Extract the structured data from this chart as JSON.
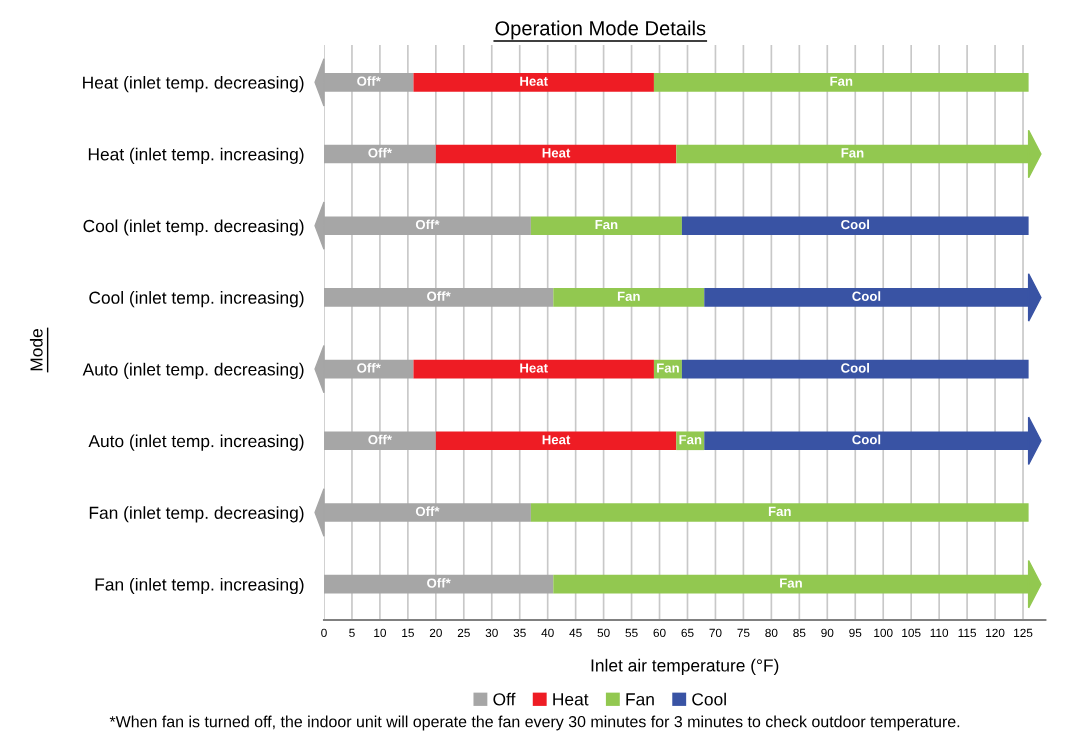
{
  "chart_data": {
    "type": "bar",
    "orientation": "horizontal",
    "stacked": true,
    "title": "Operation Mode Details",
    "xlabel": "Inlet air temperature (°F)",
    "ylabel": "Mode",
    "categories": [
      "Heat (inlet temp. decreasing)",
      "Heat (inlet temp. increasing)",
      "Cool (inlet temp. decreasing)",
      "Cool (inlet temp. increasing)",
      "Auto (inlet temp. decreasing)",
      "Auto (inlet temp. increasing)",
      "Fan (inlet temp. decreasing)",
      "Fan (inlet temp. increasing)"
    ],
    "series": [
      {
        "name": "Off",
        "color": "#a6a6a6",
        "values": [
          16,
          20,
          37,
          41,
          16,
          20,
          37,
          41
        ],
        "value_labels": [
          "Off*",
          "Off*",
          "Off*",
          "Off*",
          "Off*",
          "Off*",
          "Off*",
          "Off*"
        ]
      },
      {
        "name": "Heat",
        "color": "#ee1c24",
        "values": [
          43,
          43,
          null,
          null,
          43,
          43,
          null,
          null
        ],
        "value_labels": [
          "Heat",
          "Heat",
          null,
          null,
          "Heat",
          "Heat",
          null,
          null
        ]
      },
      {
        "name": "Fan",
        "color": "#92c850",
        "values": [
          67,
          63,
          27,
          27,
          5,
          5,
          89,
          85
        ],
        "value_labels": [
          "Fan",
          "Fan",
          "Fan",
          "Fan",
          "Fan",
          "Fan",
          "Fan",
          "Fan"
        ]
      },
      {
        "name": "Cool",
        "color": "#3953a4",
        "values": [
          null,
          null,
          62,
          58,
          62,
          58,
          null,
          null
        ],
        "value_labels": [
          null,
          null,
          "Cool",
          "Cool",
          "Cool",
          "Cool",
          null,
          null
        ]
      }
    ],
    "xlim": [
      0,
      129
    ],
    "xticks": [
      0,
      5,
      10,
      15,
      20,
      25,
      30,
      35,
      40,
      45,
      50,
      55,
      60,
      65,
      70,
      75,
      80,
      85,
      90,
      95,
      100,
      105,
      110,
      115,
      120,
      125
    ],
    "grid": "x",
    "legend": "bottom",
    "annotations": [
      "*When fan is turned off, the indoor unit will operate the fan every 30 minutes for 3 minutes to check outdoor temperature."
    ]
  }
}
